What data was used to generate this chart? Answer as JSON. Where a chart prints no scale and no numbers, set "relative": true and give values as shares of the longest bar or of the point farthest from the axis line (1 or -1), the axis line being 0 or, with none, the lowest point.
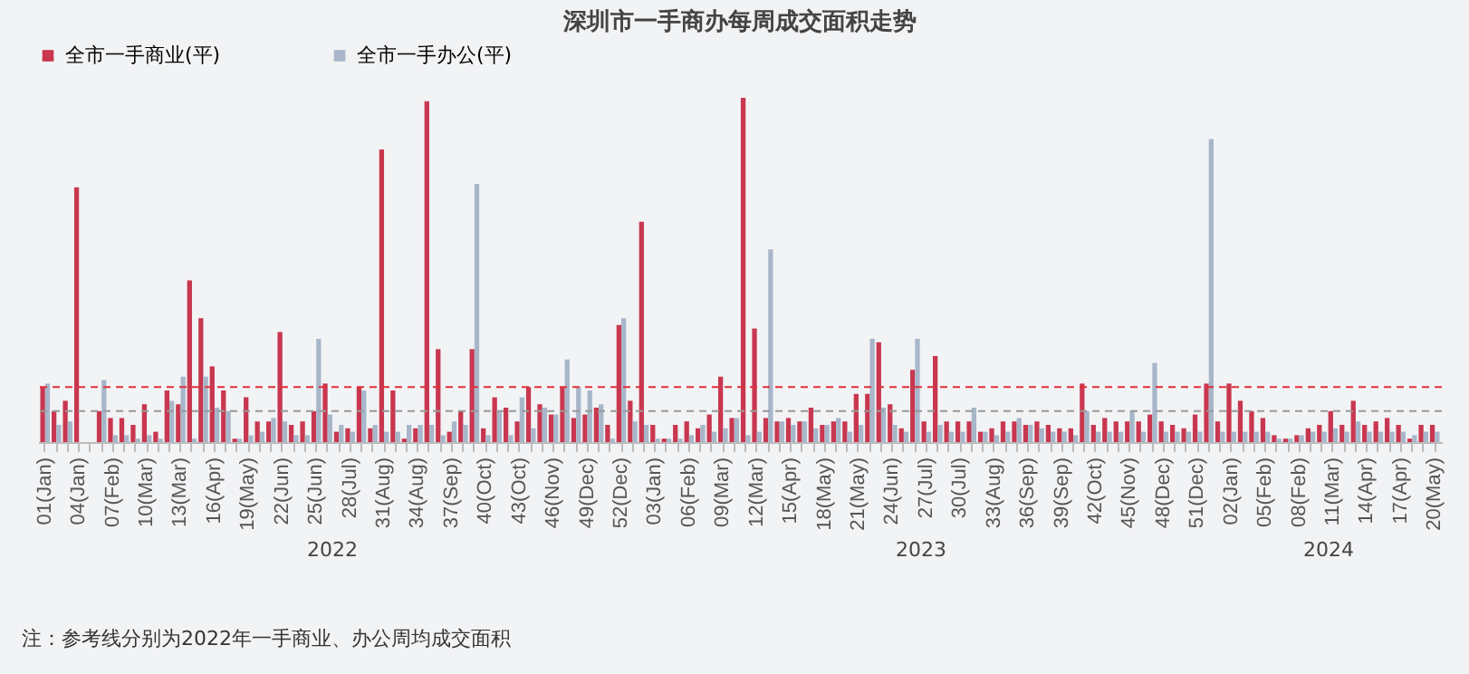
{
  "chart_data": {
    "type": "bar",
    "title": "深圳市一手商办每周成交面积走势",
    "relative": true,
    "legend": "top",
    "categories": [
      "01(Jan)",
      null,
      null,
      "04(Jan)",
      null,
      null,
      "07(Feb)",
      null,
      null,
      "10(Mar)",
      null,
      null,
      "13(Mar)",
      null,
      null,
      "16(Apr)",
      null,
      null,
      "19(May)",
      null,
      null,
      "22(Jun)",
      null,
      null,
      "25(Jun)",
      null,
      null,
      "28(Jul)",
      null,
      null,
      "31(Aug)",
      null,
      null,
      "34(Aug)",
      null,
      null,
      "37(Sep)",
      null,
      null,
      "40(Oct)",
      null,
      null,
      "43(Oct)",
      null,
      null,
      "46(Nov)",
      null,
      null,
      "49(Dec)",
      null,
      null,
      "52(Dec)",
      null,
      null,
      "03(Jan)",
      null,
      null,
      "06(Feb)",
      null,
      null,
      "09(Mar)",
      null,
      null,
      "12(Mar)",
      null,
      null,
      "15(Apr)",
      null,
      null,
      "18(May)",
      null,
      null,
      "21(May)",
      null,
      null,
      "24(Jun)",
      null,
      null,
      "27(Jul)",
      null,
      null,
      "30(Jul)",
      null,
      null,
      "33(Aug)",
      null,
      null,
      "36(Sep)",
      null,
      null,
      "39(Sep)",
      null,
      null,
      "42(Oct)",
      null,
      null,
      "45(Nov)",
      null,
      null,
      "48(Dec)",
      null,
      null,
      "51(Dec)",
      null,
      null,
      "02(Jan)",
      null,
      null,
      "05(Feb)",
      null,
      null,
      "08(Feb)",
      null,
      null,
      "11(Mar)",
      null,
      null,
      "14(Apr)",
      null,
      null,
      "17(Apr)",
      null,
      null,
      "20(May)"
    ],
    "series": [
      {
        "name": "全市一手商业(平)",
        "color": "#c8374f",
        "values": [
          0.16,
          0.09,
          0.12,
          0.74,
          0,
          0.09,
          0.07,
          0.07,
          0.05,
          0.11,
          0.03,
          0.15,
          0.11,
          0.47,
          0.36,
          0.22,
          0.15,
          0.01,
          0.13,
          0.06,
          0.06,
          0.32,
          0.05,
          0.06,
          0.09,
          0.17,
          0.03,
          0.04,
          0.16,
          0.04,
          0.85,
          0.15,
          0.01,
          0.04,
          0.99,
          0.27,
          0.03,
          0.09,
          0.27,
          0.04,
          0.13,
          0.1,
          0.06,
          0.16,
          0.11,
          0.08,
          0.16,
          0.07,
          0.08,
          0.1,
          0.05,
          0.34,
          0.12,
          0.64,
          0.05,
          0.01,
          0.05,
          0.06,
          0.04,
          0.08,
          0.19,
          0.07,
          1,
          0.33,
          0.07,
          0.06,
          0.07,
          0.06,
          0.1,
          0.05,
          0.06,
          0.06,
          0.14,
          0.14,
          0.29,
          0.11,
          0.04,
          0.21,
          0.06,
          0.25,
          0.06,
          0.06,
          0.06,
          0.03,
          0.04,
          0.06,
          0.06,
          0.05,
          0.06,
          0.05,
          0.04,
          0.04,
          0.17,
          0.05,
          0.07,
          0.06,
          0.06,
          0.06,
          0.08,
          0.06,
          0.05,
          0.04,
          0.08,
          0.17,
          0.06,
          0.17,
          0.12,
          0.09,
          0.07,
          0.02,
          0.01,
          0.02,
          0.04,
          0.05,
          0.09,
          0.05,
          0.12,
          0.05,
          0.06,
          0.07,
          0.05,
          0.01,
          0.05,
          0.05
        ]
      },
      {
        "name": "全市一手办公(平)",
        "color": "#a8b6ca",
        "values": [
          0.17,
          0.05,
          0.06,
          0,
          0,
          0.18,
          0.02,
          0.02,
          0.01,
          0.02,
          0.01,
          0.12,
          0.19,
          0.01,
          0.19,
          0.1,
          0.09,
          0.01,
          0.02,
          0.03,
          0.07,
          0.06,
          0.02,
          0.02,
          0.3,
          0.08,
          0.05,
          0.03,
          0.15,
          0.05,
          0.03,
          0.03,
          0.05,
          0.05,
          0.05,
          0.02,
          0.06,
          0.05,
          0.75,
          0.02,
          0.09,
          0.02,
          0.13,
          0.04,
          0.1,
          0.08,
          0.24,
          0.16,
          0.15,
          0.11,
          0.01,
          0.36,
          0.06,
          0.05,
          0.01,
          0.01,
          0.01,
          0.02,
          0.05,
          0.03,
          0.04,
          0.07,
          0.02,
          0.03,
          0.56,
          0.06,
          0.05,
          0.06,
          0.04,
          0.05,
          0.07,
          0.03,
          0.05,
          0.3,
          0.1,
          0.05,
          0.03,
          0.3,
          0.03,
          0.05,
          0.03,
          0.03,
          0.1,
          0.03,
          0.02,
          0.03,
          0.07,
          0.05,
          0.04,
          0.03,
          0.03,
          0.02,
          0.09,
          0.03,
          0.03,
          0.03,
          0.09,
          0.03,
          0.23,
          0.03,
          0.03,
          0.03,
          0.03,
          0.88,
          0.03,
          0.03,
          0.03,
          0.03,
          0.03,
          0.01,
          0.01,
          0.02,
          0.03,
          0.03,
          0.04,
          0.03,
          0.06,
          0.03,
          0.03,
          0.03,
          0.03,
          0.02,
          0.03,
          0.03
        ]
      }
    ],
    "ref_lines": [
      {
        "axis": "y",
        "value": 0.16,
        "color": "#e0303a",
        "line_style": "dashed"
      },
      {
        "axis": "y",
        "value": 0.09,
        "color": "#999999",
        "line_style": "dashed"
      }
    ],
    "annotations": [
      "2022",
      "2023",
      "2024",
      "注：参考线分别为2022年一手商业、办公周均成交面积"
    ]
  }
}
